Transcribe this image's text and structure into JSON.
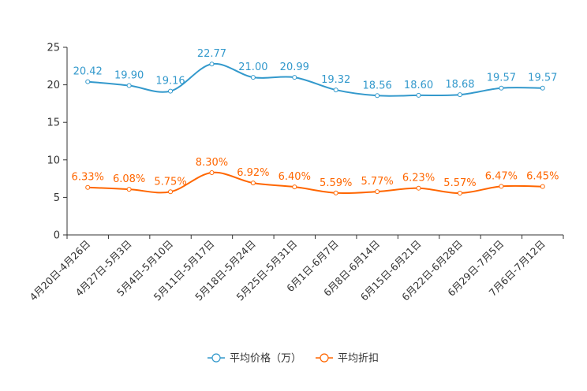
{
  "chart_data": {
    "type": "line",
    "title": "",
    "xlabel": "",
    "ylabel": "",
    "ylim": [
      0,
      25
    ],
    "yticks": [
      0,
      5,
      10,
      15,
      20,
      25
    ],
    "grid": false,
    "legend_position": "bottom",
    "categories": [
      "4月20日-4月26日",
      "4月27日-5月3日",
      "5月4日-5月10日",
      "5月11日-5月17日",
      "5月18日-5月24日",
      "5月25日-5月31日",
      "6月1日-6月7日",
      "6月8日-6月14日",
      "6月15日-6月21日",
      "6月22日-6月28日",
      "6月29日-7月5日",
      "7月6日-7月12日"
    ],
    "series": [
      {
        "name": "平均价格（万）",
        "color": "#3399cc",
        "values": [
          20.42,
          19.9,
          19.16,
          22.77,
          21.0,
          20.99,
          19.32,
          18.56,
          18.6,
          18.68,
          19.57,
          19.57
        ],
        "labels": [
          "20.42",
          "19.90",
          "19.16",
          "22.77",
          "21.00",
          "20.99",
          "19.32",
          "18.56",
          "18.60",
          "18.68",
          "19.57",
          "19.57"
        ]
      },
      {
        "name": "平均折扣",
        "color": "#ff6600",
        "values": [
          6.33,
          6.08,
          5.75,
          8.3,
          6.92,
          6.4,
          5.59,
          5.77,
          6.23,
          5.57,
          6.47,
          6.45
        ],
        "labels": [
          "6.33%",
          "6.08%",
          "5.75%",
          "8.30%",
          "6.92%",
          "6.40%",
          "5.59%",
          "5.77%",
          "6.23%",
          "5.57%",
          "6.47%",
          "6.45%"
        ]
      }
    ]
  }
}
